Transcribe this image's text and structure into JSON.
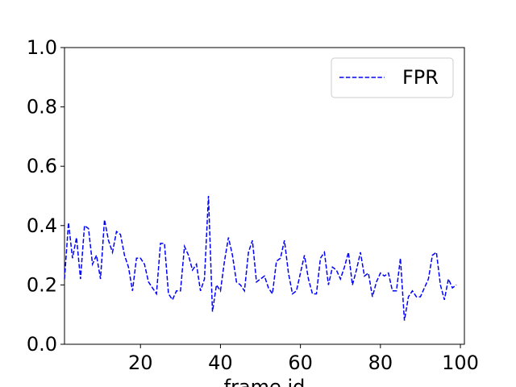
{
  "chart_data": {
    "type": "line",
    "x_label": "frame id",
    "x": [
      1,
      2,
      3,
      4,
      5,
      6,
      7,
      8,
      9,
      10,
      11,
      12,
      13,
      14,
      15,
      16,
      17,
      18,
      19,
      20,
      21,
      22,
      23,
      24,
      25,
      26,
      27,
      28,
      29,
      30,
      31,
      32,
      33,
      34,
      35,
      36,
      37,
      38,
      39,
      40,
      41,
      42,
      43,
      44,
      45,
      46,
      47,
      48,
      49,
      50,
      51,
      52,
      53,
      54,
      55,
      56,
      57,
      58,
      59,
      60,
      61,
      62,
      63,
      64,
      65,
      66,
      67,
      68,
      69,
      70,
      71,
      72,
      73,
      74,
      75,
      76,
      77,
      78,
      79,
      80,
      81,
      82,
      83,
      84,
      85,
      86,
      87,
      88,
      89,
      90,
      91,
      92,
      93,
      94,
      95,
      96,
      97,
      98,
      99
    ],
    "series": [
      {
        "name": "FPR",
        "color": "#0000ff",
        "dash": true,
        "values": [
          0.22,
          0.41,
          0.29,
          0.36,
          0.22,
          0.4,
          0.39,
          0.27,
          0.3,
          0.22,
          0.42,
          0.35,
          0.31,
          0.38,
          0.37,
          0.3,
          0.26,
          0.18,
          0.29,
          0.29,
          0.27,
          0.21,
          0.19,
          0.17,
          0.34,
          0.34,
          0.17,
          0.15,
          0.18,
          0.18,
          0.33,
          0.3,
          0.25,
          0.27,
          0.18,
          0.22,
          0.5,
          0.11,
          0.2,
          0.18,
          0.28,
          0.36,
          0.3,
          0.21,
          0.2,
          0.18,
          0.31,
          0.35,
          0.21,
          0.22,
          0.23,
          0.19,
          0.17,
          0.28,
          0.29,
          0.35,
          0.24,
          0.17,
          0.18,
          0.24,
          0.3,
          0.22,
          0.17,
          0.17,
          0.29,
          0.31,
          0.2,
          0.26,
          0.25,
          0.22,
          0.26,
          0.31,
          0.2,
          0.25,
          0.31,
          0.23,
          0.24,
          0.16,
          0.21,
          0.24,
          0.23,
          0.24,
          0.18,
          0.18,
          0.29,
          0.08,
          0.16,
          0.18,
          0.16,
          0.16,
          0.19,
          0.22,
          0.3,
          0.31,
          0.2,
          0.15,
          0.22,
          0.19,
          0.2
        ]
      }
    ],
    "xlim": [
      1,
      101
    ],
    "ylim": [
      0,
      1
    ],
    "xticks": [
      20,
      40,
      60,
      80,
      100
    ],
    "yticks": [
      {
        "value": 0,
        "label": "0.0"
      },
      {
        "value": 0.2,
        "label": "0.2"
      },
      {
        "value": 0.4,
        "label": "0.4"
      },
      {
        "value": 0.6,
        "label": "0.6"
      },
      {
        "value": 0.8,
        "label": "0.8"
      },
      {
        "value": 1,
        "label": "1.0"
      }
    ],
    "legend": "upper right"
  }
}
